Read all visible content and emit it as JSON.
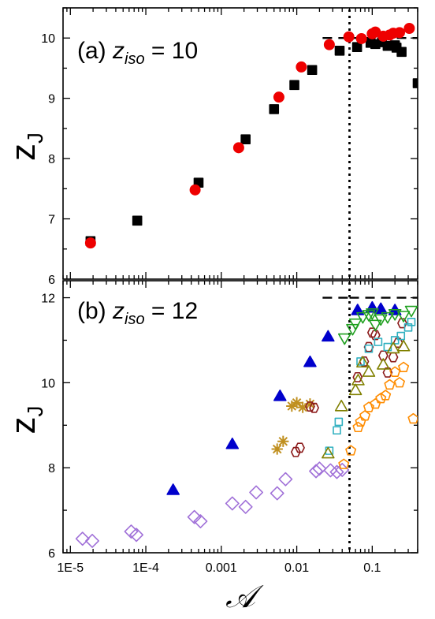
{
  "chart_data": [
    {
      "type": "scatter",
      "panel_label": "(a)",
      "annotation": {
        "symbol": "z",
        "subscript": "iso",
        "text": " = 10"
      },
      "ylabel": {
        "main": "z",
        "sub": "J"
      },
      "xscale": "log",
      "xlim": [
        8e-06,
        0.4
      ],
      "ylim": [
        6,
        10.5
      ],
      "yticks": [
        6,
        7,
        8,
        9,
        10
      ],
      "hline": 10,
      "vline": 0.05,
      "series": [
        {
          "marker": "square",
          "color": "#000000",
          "fill": true,
          "points": [
            [
              1.85e-05,
              6.63
            ],
            [
              7.7e-05,
              6.97
            ],
            [
              0.0005,
              7.6
            ],
            [
              0.0021,
              8.32
            ],
            [
              0.005,
              8.82
            ],
            [
              0.0093,
              9.22
            ],
            [
              0.016,
              9.47
            ],
            [
              0.037,
              9.79
            ],
            [
              0.063,
              9.85
            ],
            [
              0.095,
              9.92
            ],
            [
              0.11,
              9.9
            ],
            [
              0.135,
              9.93
            ],
            [
              0.16,
              9.87
            ],
            [
              0.2,
              9.88
            ],
            [
              0.21,
              9.84
            ],
            [
              0.245,
              9.77
            ],
            [
              0.4,
              9.25
            ]
          ]
        },
        {
          "marker": "circle",
          "color": "#ee0000",
          "fill": true,
          "points": [
            [
              1.85e-05,
              6.6
            ],
            [
              0.00045,
              7.48
            ],
            [
              0.0017,
              8.18
            ],
            [
              0.0058,
              9.02
            ],
            [
              0.0115,
              9.52
            ],
            [
              0.027,
              9.89
            ],
            [
              0.049,
              10.02
            ],
            [
              0.072,
              9.99
            ],
            [
              0.1,
              10.07
            ],
            [
              0.11,
              10.1
            ],
            [
              0.14,
              10.03
            ],
            [
              0.17,
              10.05
            ],
            [
              0.19,
              10.08
            ],
            [
              0.23,
              10.09
            ],
            [
              0.31,
              10.16
            ]
          ]
        }
      ]
    },
    {
      "type": "scatter",
      "panel_label": "(b)",
      "annotation": {
        "symbol": "z",
        "subscript": "iso",
        "text": " = 12"
      },
      "ylabel": {
        "main": "z",
        "sub": "J"
      },
      "xlabel": "𝒜",
      "xscale": "log",
      "xlim": [
        8e-06,
        0.4
      ],
      "ylim": [
        6,
        12.4
      ],
      "yticks": [
        6,
        8,
        10,
        12
      ],
      "xticks": [
        {
          "value": 1e-05,
          "label": "1E-5"
        },
        {
          "value": 0.0001,
          "label": "1E-4"
        },
        {
          "value": 0.001,
          "label": "0.001"
        },
        {
          "value": 0.01,
          "label": "0.01"
        },
        {
          "value": 0.1,
          "label": "0.1"
        }
      ],
      "hline": 12,
      "vline": 0.05,
      "series": [
        {
          "marker": "diamond",
          "color": "#a070d8",
          "fill": false,
          "points": [
            [
              1.45e-05,
              6.33
            ],
            [
              1.95e-05,
              6.28
            ],
            [
              6.4e-05,
              6.5
            ],
            [
              7.5e-05,
              6.42
            ],
            [
              0.00044,
              6.84
            ],
            [
              0.00053,
              6.74
            ],
            [
              0.0014,
              7.16
            ],
            [
              0.0021,
              7.08
            ],
            [
              0.0029,
              7.42
            ],
            [
              0.0055,
              7.4
            ],
            [
              0.0071,
              7.73
            ],
            [
              0.018,
              7.92
            ],
            [
              0.02,
              7.98
            ],
            [
              0.028,
              7.94
            ],
            [
              0.034,
              7.9
            ],
            [
              0.04,
              7.95
            ]
          ]
        },
        {
          "marker": "triangle-up",
          "color": "#0000cc",
          "fill": true,
          "points": [
            [
              0.00023,
              7.47
            ],
            [
              0.0014,
              8.55
            ],
            [
              0.006,
              9.68
            ],
            [
              0.015,
              10.48
            ],
            [
              0.026,
              11.08
            ],
            [
              0.064,
              11.7
            ],
            [
              0.1,
              11.76
            ],
            [
              0.13,
              11.73
            ],
            [
              0.2,
              11.7
            ]
          ]
        },
        {
          "marker": "star",
          "color": "#c09020",
          "fill": false,
          "points": [
            [
              0.0055,
              8.44
            ],
            [
              0.0066,
              8.62
            ],
            [
              0.0086,
              9.45
            ],
            [
              0.01,
              9.53
            ],
            [
              0.012,
              9.42
            ],
            [
              0.015,
              9.5
            ]
          ]
        },
        {
          "marker": "hexagon",
          "color": "#8b1a1a",
          "fill": false,
          "points": [
            [
              0.0097,
              8.37
            ],
            [
              0.011,
              8.47
            ],
            [
              0.015,
              9.44
            ],
            [
              0.017,
              9.41
            ],
            [
              0.064,
              10.13
            ],
            [
              0.078,
              10.5
            ],
            [
              0.09,
              10.84
            ],
            [
              0.1,
              11.18
            ],
            [
              0.11,
              11.12
            ],
            [
              0.14,
              10.64
            ],
            [
              0.16,
              10.24
            ],
            [
              0.19,
              10.6
            ],
            [
              0.22,
              10.94
            ],
            [
              0.25,
              11.4
            ]
          ]
        },
        {
          "marker": "square",
          "color": "#30b0c0",
          "fill": false,
          "points": [
            [
              0.027,
              8.4
            ],
            [
              0.034,
              8.88
            ],
            [
              0.036,
              9.08
            ],
            [
              0.07,
              10.5
            ],
            [
              0.09,
              10.8
            ],
            [
              0.12,
              10.96
            ],
            [
              0.16,
              10.84
            ],
            [
              0.2,
              11.0
            ],
            [
              0.24,
              11.1
            ],
            [
              0.3,
              11.3
            ],
            [
              0.33,
              11.43
            ]
          ]
        },
        {
          "marker": "pentagon",
          "color": "#ff8c00",
          "fill": false,
          "points": [
            [
              0.042,
              8.08
            ],
            [
              0.052,
              8.4
            ],
            [
              0.065,
              8.95
            ],
            [
              0.07,
              9.08
            ],
            [
              0.08,
              9.22
            ],
            [
              0.09,
              9.42
            ],
            [
              0.11,
              9.5
            ],
            [
              0.13,
              9.63
            ],
            [
              0.15,
              9.7
            ],
            [
              0.17,
              9.95
            ],
            [
              0.2,
              10.25
            ],
            [
              0.23,
              10.0
            ],
            [
              0.26,
              10.36
            ],
            [
              0.35,
              9.15
            ]
          ]
        },
        {
          "marker": "triangle-up",
          "color": "#808000",
          "fill": false,
          "points": [
            [
              0.026,
              8.33
            ],
            [
              0.039,
              9.44
            ],
            [
              0.06,
              9.82
            ],
            [
              0.065,
              10.05
            ],
            [
              0.075,
              10.47
            ],
            [
              0.09,
              10.25
            ],
            [
              0.14,
              10.42
            ],
            [
              0.19,
              10.8
            ],
            [
              0.26,
              10.85
            ]
          ]
        },
        {
          "marker": "triangle-down",
          "color": "#20a020",
          "fill": false,
          "points": [
            [
              0.043,
              11.05
            ],
            [
              0.055,
              11.27
            ],
            [
              0.06,
              11.4
            ],
            [
              0.075,
              11.55
            ],
            [
              0.09,
              11.6
            ],
            [
              0.1,
              11.64
            ],
            [
              0.11,
              11.37
            ],
            [
              0.13,
              11.5
            ],
            [
              0.16,
              11.55
            ],
            [
              0.2,
              11.62
            ],
            [
              0.26,
              11.58
            ],
            [
              0.33,
              11.7
            ]
          ]
        }
      ]
    }
  ]
}
